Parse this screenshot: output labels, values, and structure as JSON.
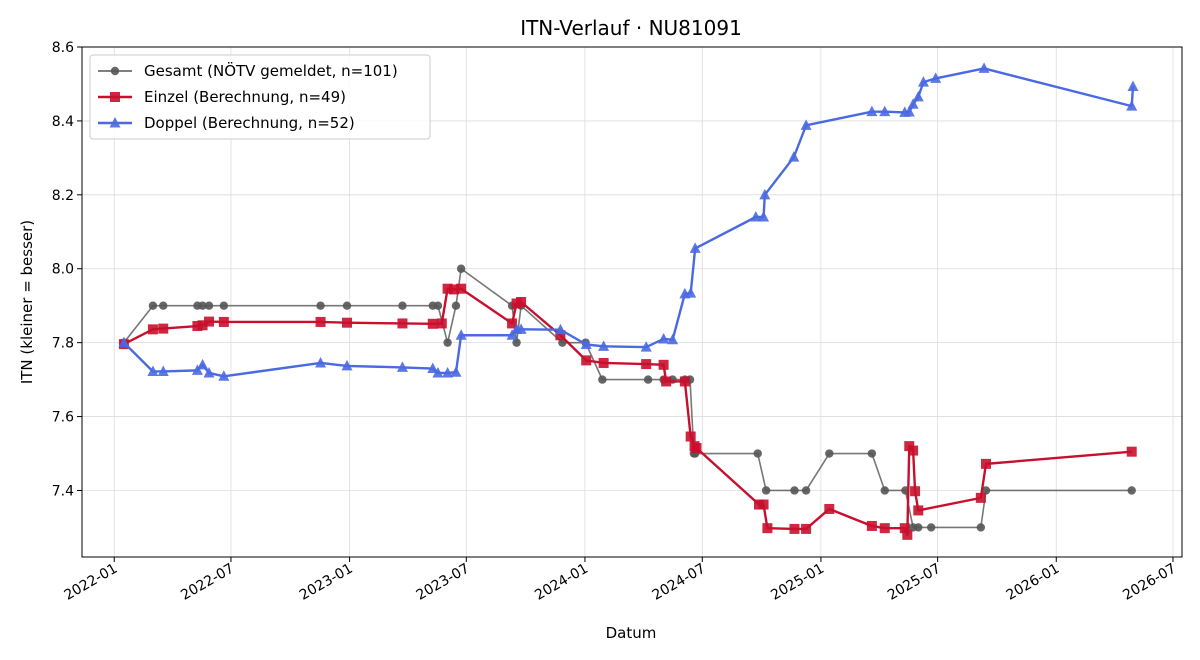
{
  "chart_data": {
    "type": "line",
    "title": "ITN-Verlauf · NU81091",
    "xlabel": "Datum",
    "ylabel": "ITN  (kleiner = besser)",
    "x_type": "date",
    "xlim": [
      "2021-11-12",
      "2026-07-15"
    ],
    "ylim": [
      7.22,
      8.6
    ],
    "xticks": [
      "2022-01",
      "2022-07",
      "2023-01",
      "2023-07",
      "2024-01",
      "2024-07",
      "2025-01",
      "2025-07",
      "2026-01",
      "2026-07"
    ],
    "yticks": [
      7.4,
      7.6,
      7.8,
      8.0,
      8.2,
      8.4,
      8.6
    ],
    "ytick_labels": [
      "7.4",
      "7.6",
      "7.8",
      "8.0",
      "8.2",
      "8.4",
      "8.6"
    ],
    "grid": true,
    "legend_position": "top-left",
    "series": [
      {
        "name": "Gesamt (NÖTV gemeldet, n=101)",
        "color": "#555555",
        "marker": "circle",
        "points": [
          [
            "2022-01-16",
            7.8
          ],
          [
            "2022-03-02",
            7.9
          ],
          [
            "2022-03-18",
            7.9
          ],
          [
            "2022-05-10",
            7.9
          ],
          [
            "2022-05-18",
            7.9
          ],
          [
            "2022-05-28",
            7.9
          ],
          [
            "2022-06-20",
            7.9
          ],
          [
            "2022-11-17",
            7.9
          ],
          [
            "2022-12-28",
            7.9
          ],
          [
            "2023-03-24",
            7.9
          ],
          [
            "2023-05-10",
            7.9
          ],
          [
            "2023-05-18",
            7.9
          ],
          [
            "2023-06-02",
            7.8
          ],
          [
            "2023-06-15",
            7.9
          ],
          [
            "2023-06-23",
            8.0
          ],
          [
            "2023-09-10",
            7.9
          ],
          [
            "2023-09-17",
            7.8
          ],
          [
            "2023-09-24",
            7.9
          ],
          [
            "2023-11-27",
            7.8
          ],
          [
            "2024-01-02",
            7.8
          ],
          [
            "2024-01-28",
            7.7
          ],
          [
            "2024-04-08",
            7.7
          ],
          [
            "2024-05-02",
            7.7
          ],
          [
            "2024-05-16",
            7.7
          ],
          [
            "2024-06-04",
            7.7
          ],
          [
            "2024-06-12",
            7.7
          ],
          [
            "2024-06-18",
            7.5
          ],
          [
            "2024-06-20",
            7.5
          ],
          [
            "2024-09-25",
            7.5
          ],
          [
            "2024-10-08",
            7.4
          ],
          [
            "2024-11-21",
            7.4
          ],
          [
            "2024-12-09",
            7.4
          ],
          [
            "2025-01-14",
            7.5
          ],
          [
            "2025-03-21",
            7.5
          ],
          [
            "2025-04-10",
            7.4
          ],
          [
            "2025-05-12",
            7.4
          ],
          [
            "2025-05-24",
            7.3
          ],
          [
            "2025-06-01",
            7.3
          ],
          [
            "2025-06-21",
            7.3
          ],
          [
            "2025-09-06",
            7.3
          ],
          [
            "2025-09-14",
            7.4
          ],
          [
            "2026-04-28",
            7.4
          ]
        ]
      },
      {
        "name": "Einzel (Berechnung, n=49)",
        "color": "#c8102e",
        "marker": "square",
        "points": [
          [
            "2022-01-16",
            7.796
          ],
          [
            "2022-03-02",
            7.836
          ],
          [
            "2022-03-18",
            7.838
          ],
          [
            "2022-05-10",
            7.845
          ],
          [
            "2022-05-18",
            7.847
          ],
          [
            "2022-05-28",
            7.857
          ],
          [
            "2022-06-20",
            7.856
          ],
          [
            "2022-11-17",
            7.856
          ],
          [
            "2022-12-28",
            7.854
          ],
          [
            "2023-03-24",
            7.852
          ],
          [
            "2023-05-10",
            7.851
          ],
          [
            "2023-05-24",
            7.852
          ],
          [
            "2023-06-02",
            7.946
          ],
          [
            "2023-06-12",
            7.944
          ],
          [
            "2023-06-23",
            7.946
          ],
          [
            "2023-09-10",
            7.852
          ],
          [
            "2023-09-17",
            7.906
          ],
          [
            "2023-09-24",
            7.91
          ],
          [
            "2023-11-24",
            7.82
          ],
          [
            "2024-01-03",
            7.752
          ],
          [
            "2024-01-30",
            7.745
          ],
          [
            "2024-04-05",
            7.742
          ],
          [
            "2024-05-02",
            7.74
          ],
          [
            "2024-05-06",
            7.695
          ],
          [
            "2024-06-04",
            7.695
          ],
          [
            "2024-06-13",
            7.546
          ],
          [
            "2024-06-19",
            7.52
          ],
          [
            "2024-06-22",
            7.515
          ],
          [
            "2024-09-27",
            7.362
          ],
          [
            "2024-10-04",
            7.362
          ],
          [
            "2024-10-10",
            7.298
          ],
          [
            "2024-11-21",
            7.296
          ],
          [
            "2024-12-09",
            7.296
          ],
          [
            "2025-01-14",
            7.35
          ],
          [
            "2025-03-21",
            7.304
          ],
          [
            "2025-04-10",
            7.298
          ],
          [
            "2025-05-11",
            7.298
          ],
          [
            "2025-05-15",
            7.28
          ],
          [
            "2025-05-18",
            7.52
          ],
          [
            "2025-05-24",
            7.508
          ],
          [
            "2025-05-27",
            7.398
          ],
          [
            "2025-06-01",
            7.346
          ],
          [
            "2025-09-06",
            7.38
          ],
          [
            "2025-09-14",
            7.472
          ],
          [
            "2026-04-28",
            7.505
          ]
        ]
      },
      {
        "name": "Doppel (Berechnung, n=52)",
        "color": "#4a69e2",
        "marker": "triangle",
        "points": [
          [
            "2022-01-16",
            7.8
          ],
          [
            "2022-03-02",
            7.722
          ],
          [
            "2022-03-18",
            7.722
          ],
          [
            "2022-05-10",
            7.725
          ],
          [
            "2022-05-18",
            7.74
          ],
          [
            "2022-05-28",
            7.718
          ],
          [
            "2022-06-20",
            7.709
          ],
          [
            "2022-11-17",
            7.745
          ],
          [
            "2022-12-28",
            7.737
          ],
          [
            "2023-03-24",
            7.733
          ],
          [
            "2023-05-10",
            7.73
          ],
          [
            "2023-05-18",
            7.718
          ],
          [
            "2023-06-02",
            7.718
          ],
          [
            "2023-06-15",
            7.72
          ],
          [
            "2023-06-23",
            7.82
          ],
          [
            "2023-09-10",
            7.82
          ],
          [
            "2023-09-17",
            7.836
          ],
          [
            "2023-09-24",
            7.836
          ],
          [
            "2023-11-24",
            7.835
          ],
          [
            "2024-01-03",
            7.795
          ],
          [
            "2024-01-30",
            7.79
          ],
          [
            "2024-04-05",
            7.788
          ],
          [
            "2024-05-02",
            7.81
          ],
          [
            "2024-05-16",
            7.808
          ],
          [
            "2024-06-04",
            7.932
          ],
          [
            "2024-06-13",
            7.934
          ],
          [
            "2024-06-20",
            8.055
          ],
          [
            "2024-09-22",
            8.14
          ],
          [
            "2024-10-04",
            8.14
          ],
          [
            "2024-10-06",
            8.2
          ],
          [
            "2024-11-20",
            8.302
          ],
          [
            "2024-12-09",
            8.388
          ],
          [
            "2025-03-21",
            8.425
          ],
          [
            "2025-04-10",
            8.425
          ],
          [
            "2025-05-11",
            8.423
          ],
          [
            "2025-05-18",
            8.424
          ],
          [
            "2025-05-24",
            8.445
          ],
          [
            "2025-06-01",
            8.465
          ],
          [
            "2025-06-09",
            8.505
          ],
          [
            "2025-06-28",
            8.515
          ],
          [
            "2025-09-11",
            8.542
          ],
          [
            "2026-04-28",
            8.44
          ],
          [
            "2026-04-30",
            8.493
          ]
        ]
      }
    ]
  }
}
